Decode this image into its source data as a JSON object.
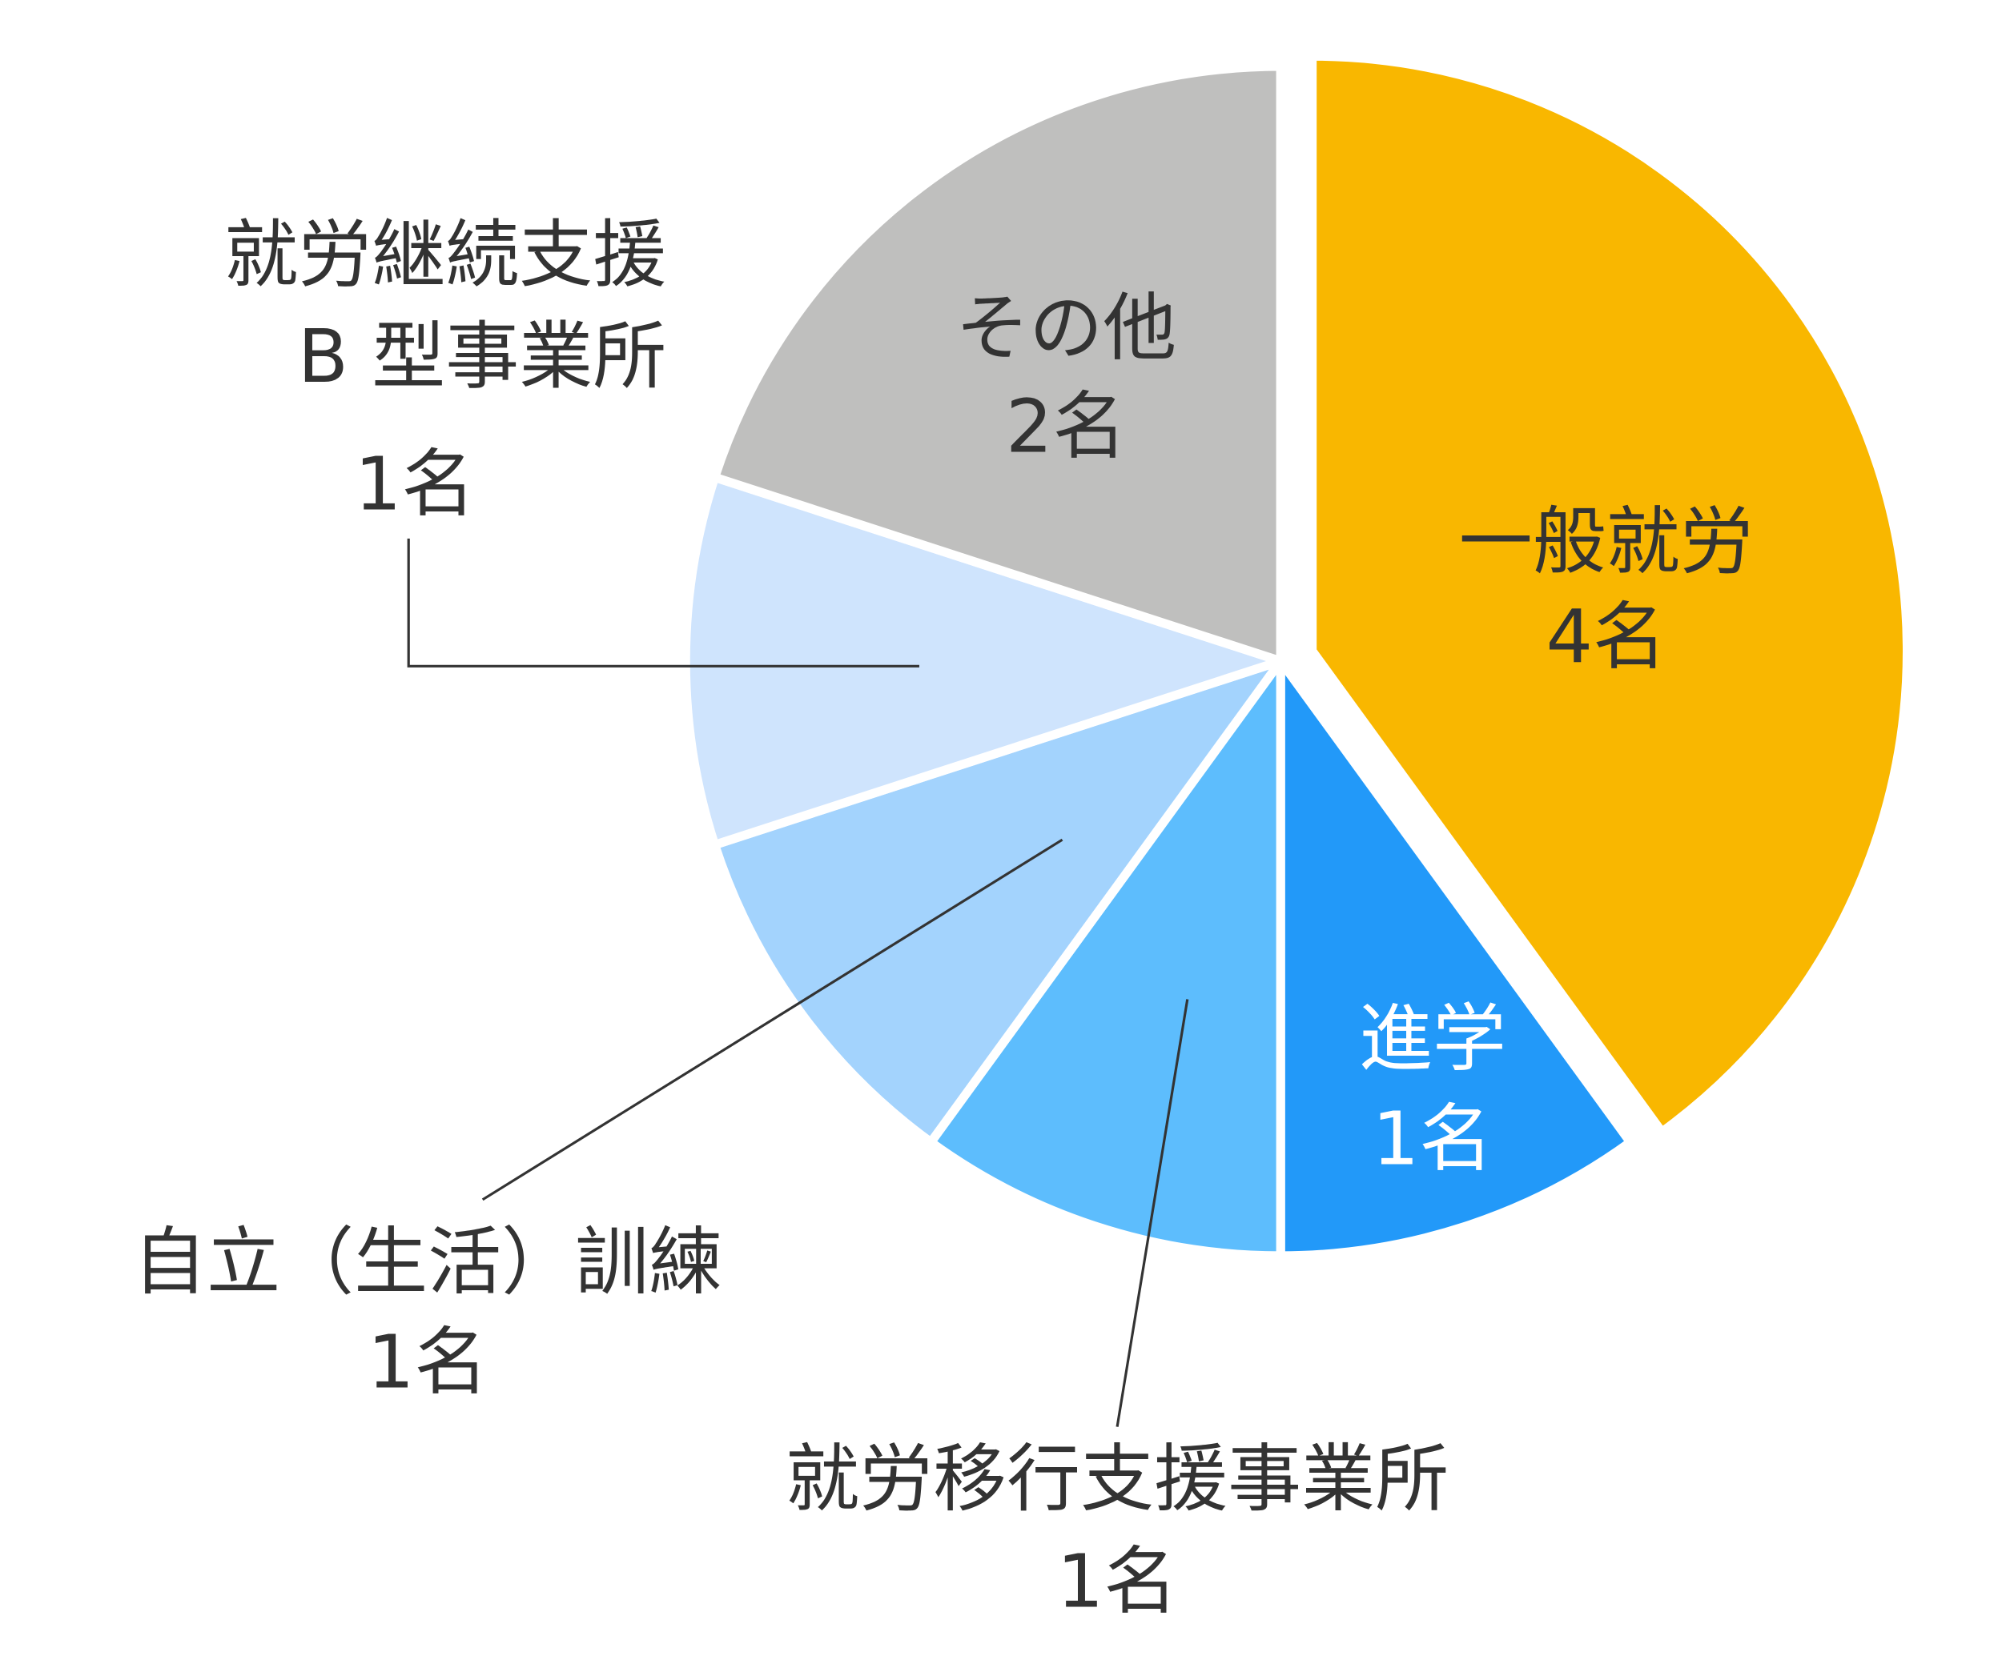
{
  "chart_data": {
    "type": "pie",
    "categories": [
      "一般就労",
      "進学",
      "就労移行支援事業所",
      "自立（生活）訓練",
      "就労継続支援\nB 型事業所",
      "その他"
    ],
    "values": [
      4,
      1,
      1,
      1,
      1,
      2
    ],
    "value_labels": [
      "4名",
      "1名",
      "1名",
      "1名",
      "1名",
      "2名"
    ],
    "colors": [
      "#F9B700",
      "#2299F9",
      "#5DBDFD",
      "#A3D3FD",
      "#CFE4FD",
      "#BFBFBE"
    ]
  }
}
